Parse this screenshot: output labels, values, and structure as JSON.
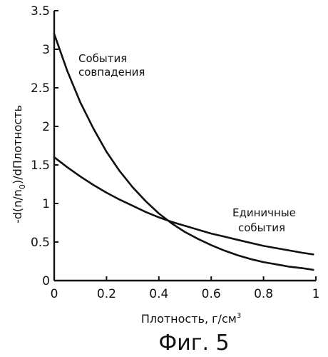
{
  "chart_data": {
    "type": "line",
    "xlabel": "Плотность, г/см",
    "xlabel_sup": "3",
    "ylabel": "-d(n/n",
    "ylabel_sub": "0",
    "ylabel_tail": ")/dПлотность",
    "xlim": [
      0,
      1
    ],
    "ylim": [
      0,
      3.5
    ],
    "x_ticks": [
      0,
      0.2,
      0.4,
      0.6,
      0.8,
      1
    ],
    "x_tick_labels": [
      "0",
      "0.2",
      "0.4",
      "0.6",
      "0.8",
      "1"
    ],
    "y_ticks": [
      0,
      0.5,
      1,
      1.5,
      2,
      2.5,
      3,
      3.5
    ],
    "y_tick_labels": [
      "0",
      "0.5",
      "1",
      "1.5",
      "2",
      "2.5",
      "3",
      "3.5"
    ],
    "grid": false,
    "series": [
      {
        "name": "События совпадения",
        "label_lines": [
          "События",
          "совпадения"
        ],
        "x": [
          0.0,
          0.05,
          0.1,
          0.15,
          0.2,
          0.25,
          0.3,
          0.35,
          0.4,
          0.45,
          0.5,
          0.55,
          0.6,
          0.65,
          0.7,
          0.75,
          0.8,
          0.85,
          0.9,
          0.95,
          0.99
        ],
        "y": [
          3.2,
          2.72,
          2.31,
          1.97,
          1.67,
          1.42,
          1.21,
          1.03,
          0.87,
          0.74,
          0.63,
          0.54,
          0.46,
          0.39,
          0.33,
          0.28,
          0.24,
          0.21,
          0.18,
          0.16,
          0.14
        ]
      },
      {
        "name": "Единичные события",
        "label_lines": [
          "Единичные",
          "события"
        ],
        "x": [
          0.0,
          0.05,
          0.1,
          0.15,
          0.2,
          0.25,
          0.3,
          0.35,
          0.4,
          0.45,
          0.5,
          0.55,
          0.6,
          0.65,
          0.7,
          0.75,
          0.8,
          0.85,
          0.9,
          0.95,
          0.99
        ],
        "y": [
          1.6,
          1.47,
          1.35,
          1.24,
          1.14,
          1.05,
          0.97,
          0.89,
          0.82,
          0.76,
          0.71,
          0.66,
          0.61,
          0.57,
          0.53,
          0.49,
          0.45,
          0.42,
          0.39,
          0.36,
          0.34
        ]
      }
    ]
  },
  "caption": "Фиг. 5"
}
